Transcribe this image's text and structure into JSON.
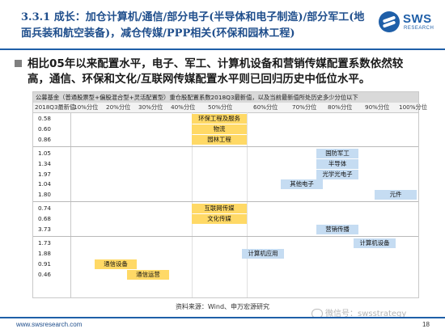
{
  "header": {
    "section": "3.3.1",
    "title": "成长：加仓计算机/通信/部分电子(半导体和电子制造)/部分军工(地面兵装和航空装备)，减仓传媒/PPP相关(环保和园林工程)",
    "logo_text": "SWS",
    "logo_sub": "RESEARCH"
  },
  "bullet": "相比05年以来配置水平，电子、军工、计算机设备和营销传媒配置系数依然较高，通信、环保和文化/互联网传媒配置水平则已回归历史中低位水平。",
  "table": {
    "caption": "公募基金（普通股票型+偏股混合型+灵活配置型）重仓股配置系数2018Q3最新值，以及当前最新值所处历史多少分位以下",
    "columns": [
      "2018Q3最新值",
      "10%分位",
      "20%分位",
      "30%分位",
      "40%分位",
      "50%分位",
      "60%分位",
      "70%分位",
      "80%分位",
      "90%分位",
      "100%分位"
    ],
    "rows": [
      {
        "value": "0.58",
        "label": "环保工程及服务",
        "percentile": "50%",
        "highlight": "yellow"
      },
      {
        "value": "0.60",
        "label": "物流",
        "percentile": "50%",
        "highlight": "yellow"
      },
      {
        "value": "0.86",
        "label": "园林工程",
        "percentile": "50%",
        "highlight": "yellow"
      },
      {
        "value": "1.05",
        "label": "国防军工",
        "percentile": "80%",
        "highlight": "blue"
      },
      {
        "value": "1.34",
        "label": "半导体",
        "percentile": "80%",
        "highlight": "blue"
      },
      {
        "value": "1.97",
        "label": "光学光电子",
        "percentile": "80%",
        "highlight": "blue"
      },
      {
        "value": "1.04",
        "label": "其他电子",
        "percentile": "70%",
        "highlight": "blue"
      },
      {
        "value": "1.80",
        "label": "元件",
        "percentile": "100%",
        "highlight": "blue"
      },
      {
        "value": "0.74",
        "label": "互联网传媒",
        "percentile": "50%",
        "highlight": "yellow"
      },
      {
        "value": "0.68",
        "label": "文化传媒",
        "percentile": "50%",
        "highlight": "yellow"
      },
      {
        "value": "3.73",
        "label": "营销传播",
        "percentile": "80%",
        "highlight": "blue"
      },
      {
        "value": "1.73",
        "label": "计算机设备",
        "percentile": "90%",
        "highlight": "blue"
      },
      {
        "value": "1.88",
        "label": "计算机应用",
        "percentile": "60%",
        "highlight": "blue"
      },
      {
        "value": "0.91",
        "label": "通信设备",
        "percentile": "20%",
        "highlight": "yellow"
      },
      {
        "value": "0.46",
        "label": "通信运营",
        "percentile": "30%",
        "highlight": "yellow"
      }
    ]
  },
  "source": "资料来源：Wind、申万宏源研究",
  "watermark": "微信号：swsstrategy",
  "footer": {
    "url": "www.swsresearch.com",
    "page": "18"
  },
  "colors": {
    "accent": "#1f5fa8",
    "yellow": "#ffd966",
    "blue": "#c5dcf2"
  }
}
